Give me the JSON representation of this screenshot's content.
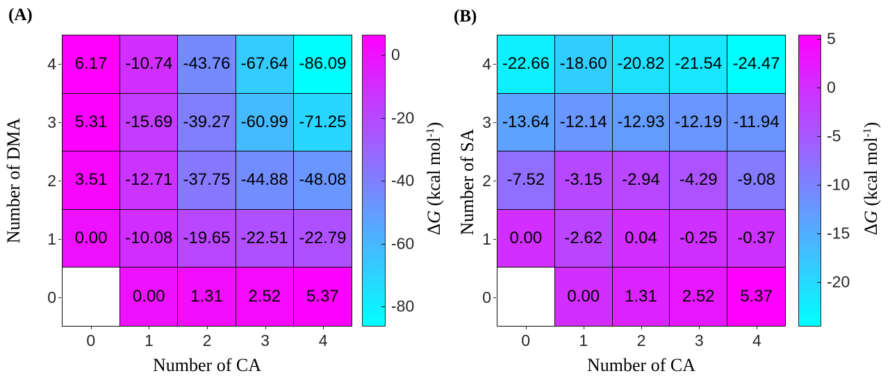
{
  "chart_data": [
    {
      "type": "heatmap",
      "panel_label": "(A)",
      "xlabel": "Number of CA",
      "ylabel": "Number of DMA",
      "x_ticks": [
        "0",
        "1",
        "2",
        "3",
        "4"
      ],
      "y_ticks": [
        "4",
        "3",
        "2",
        "1",
        "0"
      ],
      "rows_top_to_bottom_y": [
        4,
        3,
        2,
        1,
        0
      ],
      "values": [
        [
          6.17,
          -10.74,
          -43.76,
          -67.64,
          -86.09
        ],
        [
          5.31,
          -15.69,
          -39.27,
          -60.99,
          -71.25
        ],
        [
          3.51,
          -12.71,
          -37.75,
          -44.88,
          -48.08
        ],
        [
          0.0,
          -10.08,
          -19.65,
          -22.51,
          -22.79
        ],
        [
          null,
          0.0,
          1.31,
          2.52,
          5.37
        ]
      ],
      "missing_cell_note": "cell at x=0, y=0 is blank (white)",
      "colorbar": {
        "vmin": -86.09,
        "vmax": 6.17,
        "ticks": [
          0,
          -20,
          -40,
          -60,
          -80
        ],
        "colormap": "cool",
        "color_high": "#ff00ff",
        "color_low": "#00ffff",
        "label": "ΔG (kcal mol-1)",
        "label_parts": {
          "delta": "Δ",
          "g": "G",
          "units": " (kcal mol",
          "sup": "-1",
          "close": ")"
        }
      }
    },
    {
      "type": "heatmap",
      "panel_label": "(B)",
      "xlabel": "Number of CA",
      "ylabel": "Number of SA",
      "x_ticks": [
        "0",
        "1",
        "2",
        "3",
        "4"
      ],
      "y_ticks": [
        "4",
        "3",
        "2",
        "1",
        "0"
      ],
      "rows_top_to_bottom_y": [
        4,
        3,
        2,
        1,
        0
      ],
      "values": [
        [
          -22.66,
          -18.6,
          -20.82,
          -21.54,
          -24.47
        ],
        [
          -13.64,
          -12.14,
          -12.93,
          -12.19,
          -11.94
        ],
        [
          -7.52,
          -3.15,
          -2.94,
          -4.29,
          -9.08
        ],
        [
          0.0,
          -2.62,
          0.04,
          -0.25,
          -0.37
        ],
        [
          null,
          0.0,
          1.31,
          2.52,
          5.37
        ]
      ],
      "missing_cell_note": "cell at x=0, y=0 is blank (white)",
      "colorbar": {
        "vmin": -24.47,
        "vmax": 5.37,
        "ticks": [
          5,
          0,
          -5,
          -10,
          -15,
          -20
        ],
        "colormap": "cool",
        "color_high": "#ff00ff",
        "color_low": "#00ffff",
        "label": "ΔG (kcal mol-1)",
        "label_parts": {
          "delta": "Δ",
          "g": "G",
          "units": " (kcal mol",
          "sup": "-1",
          "close": ")"
        }
      }
    }
  ]
}
